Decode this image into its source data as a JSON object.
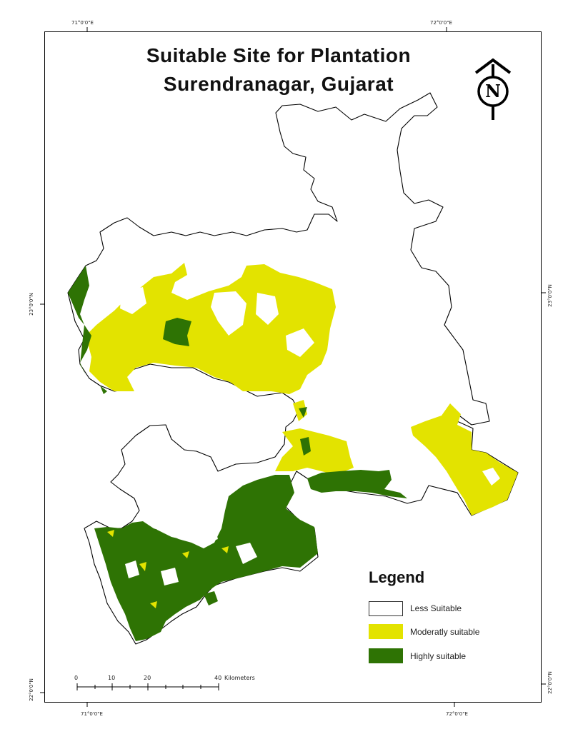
{
  "map": {
    "title_line1": "Suitable Site for Plantation",
    "title_line2": "Surendranagar, Gujarat",
    "north_label": "N"
  },
  "coordinates": {
    "top_left": "71°0'0\"E",
    "top_right": "72°0'0\"E",
    "bottom_left": "71°0'0\"E",
    "bottom_right": "72°0'0\"E",
    "left_upper": "23°0'0\"N",
    "left_lower": "22°0'0\"N",
    "right_upper": "23°0'0\"N",
    "right_lower": "22°0'0\"N"
  },
  "legend": {
    "title": "Legend",
    "items": [
      {
        "label": "Less Suitable",
        "color": "#ffffff"
      },
      {
        "label": "Moderatly suitable",
        "color": "#e3e300"
      },
      {
        "label": "Highly suitable",
        "color": "#2e7304"
      }
    ]
  },
  "scale": {
    "ticks": [
      "0",
      "10",
      "20",
      "40"
    ],
    "unit": "Kilometers"
  },
  "colors": {
    "moderate": "#e3e300",
    "high": "#2e7304",
    "outline": "#000000"
  }
}
